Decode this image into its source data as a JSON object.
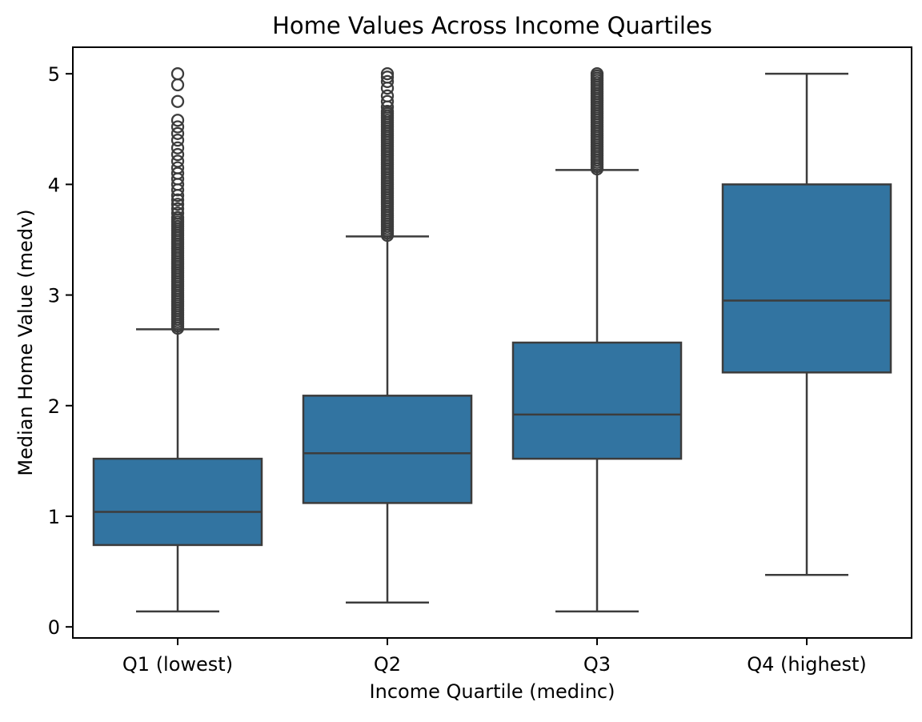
{
  "chart_data": {
    "type": "box",
    "title": "Home Values Across Income Quartiles",
    "xlabel": "Income Quartile (medinc)",
    "ylabel": "Median Home Value (medv)",
    "categories": [
      "Q1 (lowest)",
      "Q2",
      "Q3",
      "Q4 (highest)"
    ],
    "ylim": [
      -0.1,
      5.24
    ],
    "yticks": [
      0,
      1,
      2,
      3,
      4,
      5
    ],
    "grid": false,
    "legend": "none",
    "colors": {
      "box_fill": "#3274a1",
      "line_color": "#3c3c3c",
      "spine_color": "#000000",
      "background": "#ffffff"
    },
    "boxes": [
      {
        "category": "Q1 (lowest)",
        "whisker_low": 0.14,
        "q1": 0.74,
        "median": 1.04,
        "q3": 1.52,
        "whisker_high": 2.69,
        "outliers": [
          5.0,
          4.9,
          4.75,
          4.58,
          4.52,
          4.46,
          4.4,
          4.33,
          4.27,
          4.21,
          4.15,
          4.1,
          4.05,
          4.0,
          3.95,
          3.9,
          3.86,
          3.82,
          3.78,
          3.74,
          3.7,
          3.68,
          3.66,
          3.64,
          3.62,
          3.6,
          3.58,
          3.56,
          3.54,
          3.52,
          3.5,
          3.48,
          3.46,
          3.44,
          3.42,
          3.4,
          3.38,
          3.36,
          3.34,
          3.32,
          3.3,
          3.28,
          3.26,
          3.24,
          3.22,
          3.2,
          3.18,
          3.16,
          3.14,
          3.12,
          3.1,
          3.08,
          3.06,
          3.04,
          3.02,
          3.0,
          2.98,
          2.96,
          2.94,
          2.92,
          2.9,
          2.88,
          2.86,
          2.84,
          2.82,
          2.8,
          2.78,
          2.76,
          2.74,
          2.72,
          2.7
        ]
      },
      {
        "category": "Q2",
        "whisker_low": 0.22,
        "q1": 1.12,
        "median": 1.57,
        "q3": 2.09,
        "whisker_high": 3.53,
        "outliers": [
          5.0,
          4.97,
          4.93,
          4.87,
          4.8,
          4.75,
          4.7,
          4.66,
          4.64,
          4.62,
          4.6,
          4.58,
          4.56,
          4.54,
          4.52,
          4.5,
          4.48,
          4.46,
          4.44,
          4.42,
          4.4,
          4.38,
          4.36,
          4.34,
          4.32,
          4.3,
          4.28,
          4.26,
          4.24,
          4.22,
          4.2,
          4.18,
          4.16,
          4.14,
          4.12,
          4.1,
          4.08,
          4.06,
          4.04,
          4.02,
          4.0,
          3.98,
          3.96,
          3.94,
          3.92,
          3.9,
          3.88,
          3.86,
          3.84,
          3.82,
          3.8,
          3.78,
          3.76,
          3.74,
          3.72,
          3.7,
          3.68,
          3.66,
          3.64,
          3.62,
          3.6,
          3.58,
          3.56,
          3.54
        ]
      },
      {
        "category": "Q3",
        "whisker_low": 0.14,
        "q1": 1.52,
        "median": 1.92,
        "q3": 2.57,
        "whisker_high": 4.13,
        "outliers": [
          5.0,
          4.98,
          4.96,
          4.94,
          4.92,
          4.9,
          4.88,
          4.86,
          4.84,
          4.82,
          4.8,
          4.78,
          4.76,
          4.74,
          4.72,
          4.7,
          4.68,
          4.66,
          4.64,
          4.62,
          4.6,
          4.58,
          4.56,
          4.54,
          4.52,
          4.5,
          4.48,
          4.46,
          4.44,
          4.42,
          4.4,
          4.38,
          4.36,
          4.34,
          4.32,
          4.3,
          4.28,
          4.26,
          4.24,
          4.22,
          4.2,
          4.18,
          4.16,
          4.14
        ]
      },
      {
        "category": "Q4 (highest)",
        "whisker_low": 0.47,
        "q1": 2.3,
        "median": 2.95,
        "q3": 4.0,
        "whisker_high": 5.0,
        "outliers": []
      }
    ]
  }
}
